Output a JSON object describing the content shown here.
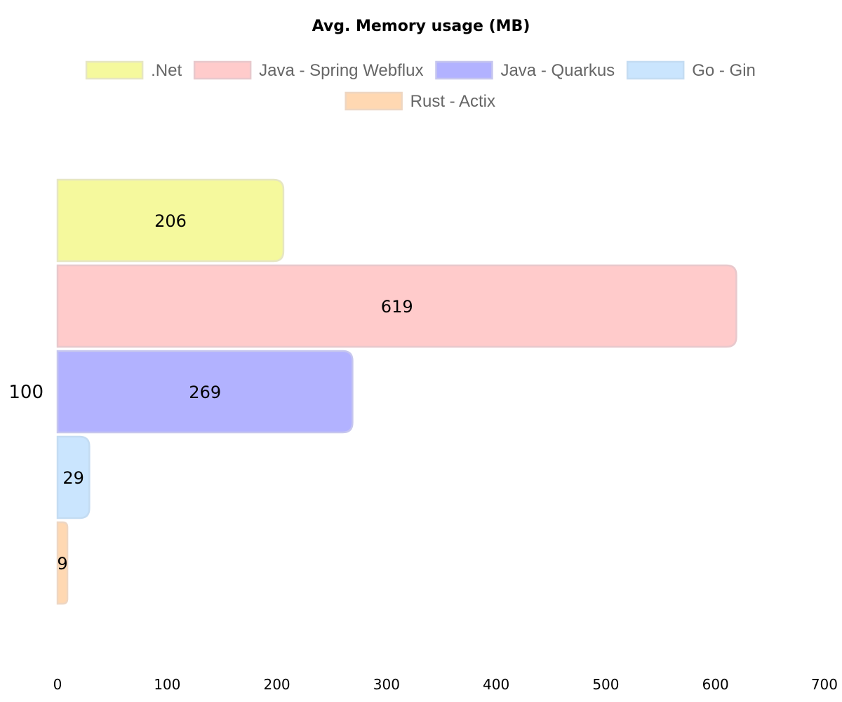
{
  "chart_data": {
    "type": "bar",
    "orientation": "horizontal",
    "title": "Avg. Memory usage (MB)",
    "xlabel": "",
    "ylabel": "",
    "categories": [
      "100"
    ],
    "xlim": [
      0,
      700
    ],
    "xticks": [
      0,
      100,
      200,
      300,
      400,
      500,
      600,
      700
    ],
    "grid": false,
    "legend_position": "top",
    "series": [
      {
        "name": ".Net",
        "values": [
          206
        ],
        "color": "#f5f99d",
        "border": "#e6e6c2"
      },
      {
        "name": "Java - Spring Webflux",
        "values": [
          619
        ],
        "color": "#ffcbcb",
        "border": "#e8c8cc"
      },
      {
        "name": "Java - Quarkus",
        "values": [
          269
        ],
        "color": "#b2b2ff",
        "border": "#c6c6ee"
      },
      {
        "name": "Go - Gin",
        "values": [
          29
        ],
        "color": "#cae5fe",
        "border": "#c4dcf2"
      },
      {
        "name": "Rust - Actix",
        "values": [
          9
        ],
        "color": "#ffd8b2",
        "border": "#eed6c2"
      }
    ]
  }
}
